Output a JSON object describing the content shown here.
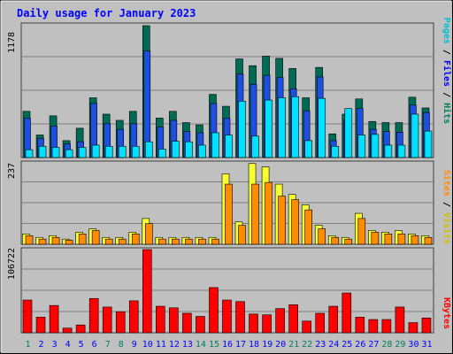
{
  "chart_data": [
    {
      "type": "bar",
      "title": "Daily usage for January 2023",
      "ymax_label": "1178",
      "ylim": [
        0,
        1178
      ],
      "categories": [
        "1",
        "2",
        "3",
        "4",
        "5",
        "6",
        "7",
        "8",
        "9",
        "10",
        "11",
        "12",
        "13",
        "14",
        "15",
        "16",
        "17",
        "18",
        "19",
        "20",
        "21",
        "22",
        "23",
        "24",
        "25",
        "26",
        "27",
        "28",
        "29",
        "30",
        "31"
      ],
      "weekend_days": [
        "1",
        "7",
        "8",
        "14",
        "15",
        "21",
        "22",
        "28",
        "29"
      ],
      "series": [
        {
          "name": "Hits",
          "color": "#006b54",
          "values": [
            410,
            200,
            370,
            150,
            260,
            530,
            385,
            330,
            410,
            1170,
            350,
            410,
            310,
            290,
            560,
            455,
            875,
            815,
            900,
            880,
            790,
            530,
            800,
            210,
            385,
            520,
            320,
            310,
            310,
            535,
            440
          ]
        },
        {
          "name": "Files",
          "color": "#1f4fe0",
          "values": [
            350,
            170,
            280,
            120,
            140,
            480,
            300,
            250,
            300,
            945,
            270,
            330,
            230,
            220,
            480,
            350,
            740,
            650,
            730,
            710,
            610,
            415,
            715,
            150,
            330,
            435,
            250,
            230,
            225,
            465,
            400
          ]
        },
        {
          "name": "Pages",
          "color": "#00e0ff",
          "values": [
            70,
            100,
            90,
            70,
            90,
            110,
            100,
            100,
            100,
            140,
            75,
            145,
            140,
            110,
            220,
            200,
            500,
            190,
            510,
            530,
            540,
            150,
            525,
            100,
            435,
            200,
            205,
            110,
            110,
            385,
            235
          ]
        }
      ]
    },
    {
      "type": "bar",
      "ymax_label": "237",
      "ylim": [
        0,
        237
      ],
      "categories": [
        "1",
        "2",
        "3",
        "4",
        "5",
        "6",
        "7",
        "8",
        "9",
        "10",
        "11",
        "12",
        "13",
        "14",
        "15",
        "16",
        "17",
        "18",
        "19",
        "20",
        "21",
        "22",
        "23",
        "24",
        "25",
        "26",
        "27",
        "28",
        "29",
        "30",
        "31"
      ],
      "series": [
        {
          "name": "Visits",
          "color": "#f7ff30",
          "values": [
            30,
            20,
            25,
            15,
            35,
            45,
            20,
            20,
            35,
            75,
            20,
            20,
            20,
            20,
            20,
            205,
            65,
            235,
            225,
            175,
            145,
            115,
            55,
            25,
            20,
            90,
            40,
            35,
            40,
            30,
            25
          ]
        },
        {
          "name": "Sites",
          "color": "#ff8c00",
          "values": [
            25,
            15,
            20,
            12,
            30,
            40,
            15,
            15,
            30,
            60,
            15,
            15,
            15,
            15,
            15,
            175,
            55,
            175,
            180,
            140,
            130,
            100,
            45,
            20,
            15,
            75,
            35,
            30,
            30,
            25,
            20
          ]
        }
      ]
    },
    {
      "type": "bar",
      "ymax_label": "106722",
      "ylim": [
        0,
        106722
      ],
      "categories": [
        "1",
        "2",
        "3",
        "4",
        "5",
        "6",
        "7",
        "8",
        "9",
        "10",
        "11",
        "12",
        "13",
        "14",
        "15",
        "16",
        "17",
        "18",
        "19",
        "20",
        "21",
        "22",
        "23",
        "24",
        "25",
        "26",
        "27",
        "28",
        "29",
        "30",
        "31"
      ],
      "series": [
        {
          "name": "KBytes",
          "color": "#ff0000",
          "values": [
            42000,
            20000,
            35000,
            6000,
            10000,
            44000,
            33000,
            27000,
            41000,
            106722,
            34000,
            32000,
            25000,
            21000,
            58000,
            42000,
            40000,
            24000,
            23000,
            31000,
            36000,
            15000,
            25000,
            34000,
            51000,
            20000,
            17000,
            17000,
            33000,
            13000,
            19000
          ]
        }
      ]
    }
  ],
  "legend_top": {
    "pages": "Pages",
    "files": "Files",
    "hits": "Hits",
    "sep": " / "
  },
  "legend_mid": {
    "sites": "Sites",
    "visits": "Visits",
    "sep": " / "
  },
  "legend_bottom": {
    "kbytes": "KBytes"
  },
  "colors": {
    "background": "#c0c0c0",
    "gridline": "#808080",
    "title": "#0000ff",
    "weekday_label": "#0000ff",
    "weekend_label": "#00805c",
    "legend_pages": "#00c0d0",
    "legend_files": "#0000ff",
    "legend_hits": "#00805c",
    "legend_sites": "#ff8c00",
    "legend_visits": "#d0c000",
    "legend_kbytes": "#ff0000",
    "legend_sep": "#000000"
  }
}
